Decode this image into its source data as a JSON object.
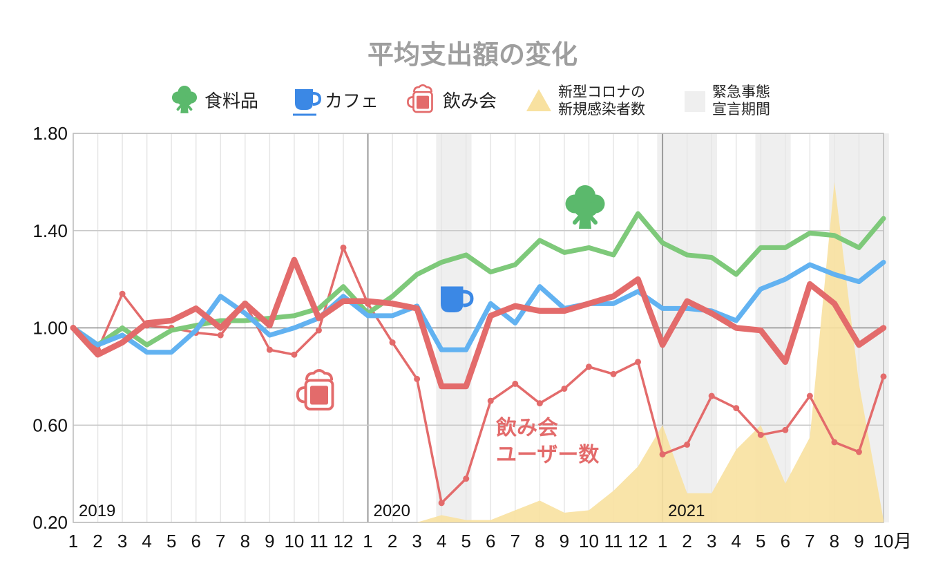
{
  "chart_data": {
    "type": "line",
    "title": "平均支出額の変化",
    "x_unit_label": "月",
    "categories": [
      "1",
      "2",
      "3",
      "4",
      "5",
      "6",
      "7",
      "8",
      "9",
      "10",
      "11",
      "12",
      "1",
      "2",
      "3",
      "4",
      "5",
      "6",
      "7",
      "8",
      "9",
      "10",
      "11",
      "12",
      "1",
      "2",
      "3",
      "4",
      "5",
      "6",
      "7",
      "8",
      "9",
      "10"
    ],
    "year_labels": [
      {
        "label": "2019",
        "start_index": 0
      },
      {
        "label": "2020",
        "start_index": 12
      },
      {
        "label": "2021",
        "start_index": 24
      }
    ],
    "y_ticks": [
      "0.20",
      "0.60",
      "1.00",
      "1.40",
      "1.80"
    ],
    "ylim": [
      0.2,
      1.8
    ],
    "grid": true,
    "legend_position": "top",
    "series": [
      {
        "name": "食料品",
        "color": "#7ec97a",
        "icon": "broccoli-icon",
        "values": [
          1.0,
          0.93,
          1.0,
          0.93,
          0.99,
          1.01,
          1.03,
          1.03,
          1.04,
          1.05,
          1.08,
          1.17,
          1.06,
          1.13,
          1.22,
          1.27,
          1.3,
          1.23,
          1.26,
          1.36,
          1.31,
          1.33,
          1.3,
          1.47,
          1.35,
          1.3,
          1.29,
          1.22,
          1.33,
          1.33,
          1.39,
          1.38,
          1.33,
          1.45
        ]
      },
      {
        "name": "カフェ",
        "color": "#62b2f1",
        "icon": "coffee-cup-icon",
        "values": [
          1.0,
          0.93,
          0.97,
          0.9,
          0.9,
          0.99,
          1.13,
          1.06,
          0.97,
          1.0,
          1.04,
          1.13,
          1.05,
          1.05,
          1.09,
          0.91,
          0.91,
          1.1,
          1.02,
          1.17,
          1.08,
          1.1,
          1.1,
          1.15,
          1.08,
          1.08,
          1.07,
          1.03,
          1.16,
          1.2,
          1.26,
          1.22,
          1.19,
          1.27
        ]
      },
      {
        "name": "飲み会",
        "color": "#e36b6b",
        "icon": "beer-mug-icon",
        "values": [
          1.0,
          0.89,
          0.94,
          1.02,
          1.03,
          1.08,
          1.0,
          1.1,
          1.01,
          1.28,
          1.04,
          1.11,
          1.11,
          1.1,
          1.08,
          0.76,
          0.76,
          1.05,
          1.09,
          1.07,
          1.07,
          1.1,
          1.13,
          1.2,
          0.93,
          1.11,
          1.06,
          1.0,
          0.99,
          0.86,
          1.18,
          1.1,
          0.93,
          1.0
        ]
      },
      {
        "name": "飲み会ユーザー数",
        "color": "#e36b6b",
        "values": [
          1.0,
          0.91,
          1.14,
          1.01,
          1.0,
          0.98,
          0.97,
          1.1,
          0.91,
          0.89,
          0.99,
          1.33,
          1.1,
          0.94,
          0.79,
          0.28,
          0.38,
          0.7,
          0.77,
          0.69,
          0.75,
          0.84,
          0.81,
          0.86,
          0.48,
          0.52,
          0.72,
          0.67,
          0.56,
          0.58,
          0.72,
          0.53,
          0.49,
          0.8
        ]
      },
      {
        "name": "新型コロナの新規感染者数",
        "type": "area",
        "color": "#f8e1a0",
        "values": [
          null,
          null,
          null,
          null,
          null,
          null,
          null,
          null,
          null,
          null,
          null,
          null,
          null,
          null,
          0.2,
          0.23,
          0.21,
          0.21,
          0.25,
          0.29,
          0.24,
          0.25,
          0.33,
          0.43,
          0.6,
          0.32,
          0.32,
          0.5,
          0.6,
          0.36,
          0.55,
          1.6,
          0.77,
          0.21
        ]
      }
    ],
    "emergency_periods": [
      {
        "start_index": 15,
        "end_index": 16
      },
      {
        "start_index": 24,
        "end_index": 26
      },
      {
        "start_index": 28,
        "end_index": 29
      },
      {
        "start_index": 31,
        "end_index": 33
      }
    ],
    "annotations": [
      {
        "text": "飲み会",
        "series": "飲み会ユーザー数"
      },
      {
        "text": "ユーザー数",
        "series": "飲み会ユーザー数"
      }
    ],
    "legend": [
      {
        "icon": "broccoli-icon",
        "label": "食料品"
      },
      {
        "icon": "coffee-cup-icon",
        "label": "カフェ"
      },
      {
        "icon": "beer-mug-icon",
        "label": "飲み会"
      },
      {
        "icon": "triangle-icon",
        "label_lines": [
          "新型コロナの",
          "新規感染者数"
        ]
      },
      {
        "icon": "gray-square-icon",
        "label_lines": [
          "緊急事態",
          "宣言期間"
        ]
      }
    ]
  }
}
